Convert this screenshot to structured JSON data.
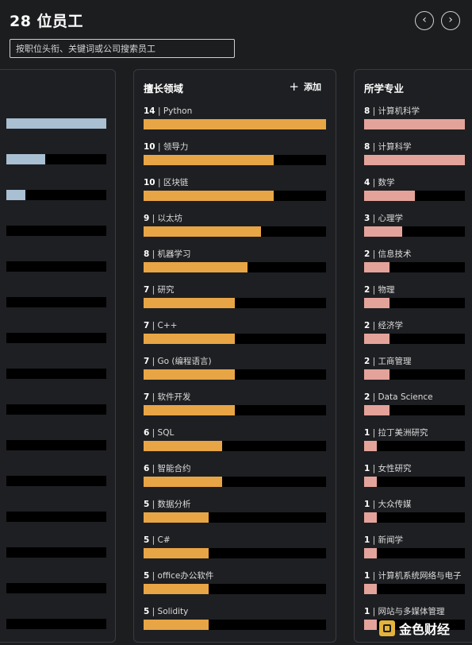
{
  "header": {
    "title": "28 位员工",
    "prev_glyph": "‹",
    "next_glyph": "›"
  },
  "search": {
    "placeholder": "按职位头衔、关键词或公司搜索员工"
  },
  "left_panel": {
    "bars": [
      {
        "fraction": 1.0
      },
      {
        "fraction": 0.39
      },
      {
        "fraction": 0.19
      },
      {
        "fraction": 0.0
      },
      {
        "fraction": 0.0
      },
      {
        "fraction": 0.0
      },
      {
        "fraction": 0.0
      },
      {
        "fraction": 0.0
      },
      {
        "fraction": 0.0
      },
      {
        "fraction": 0.0
      },
      {
        "fraction": 0.0
      },
      {
        "fraction": 0.0
      },
      {
        "fraction": 0.0
      },
      {
        "fraction": 0.0
      },
      {
        "fraction": 0.0
      }
    ],
    "bar_color": "#a9bfd2"
  },
  "skills_panel": {
    "title": "擅长领域",
    "add_label": "添加",
    "bar_color": "#e8a545",
    "max_value": 14,
    "items": [
      {
        "count": "14",
        "label": "| Python",
        "value": 14
      },
      {
        "count": "10",
        "label": "| 领导力",
        "value": 10
      },
      {
        "count": "10",
        "label": "| 区块链",
        "value": 10
      },
      {
        "count": "9",
        "label": "| 以太坊",
        "value": 9
      },
      {
        "count": "8",
        "label": "| 机器学习",
        "value": 8
      },
      {
        "count": "7",
        "label": "| 研究",
        "value": 7
      },
      {
        "count": "7",
        "label": "| C++",
        "value": 7
      },
      {
        "count": "7",
        "label": "| Go (编程语言)",
        "value": 7
      },
      {
        "count": "7",
        "label": "| 软件开发",
        "value": 7
      },
      {
        "count": "6",
        "label": "| SQL",
        "value": 6
      },
      {
        "count": "6",
        "label": "| 智能合约",
        "value": 6
      },
      {
        "count": "5",
        "label": "| 数据分析",
        "value": 5
      },
      {
        "count": "5",
        "label": "| C#",
        "value": 5
      },
      {
        "count": "5",
        "label": "| office办公软件",
        "value": 5
      },
      {
        "count": "5",
        "label": "| Solidity",
        "value": 5
      }
    ]
  },
  "majors_panel": {
    "title": "所学专业",
    "bar_color": "#e4a39a",
    "max_value": 8,
    "items": [
      {
        "count": "8",
        "label": "| 计算机科学",
        "value": 8
      },
      {
        "count": "8",
        "label": "| 计算科学",
        "value": 8
      },
      {
        "count": "4",
        "label": "| 数学",
        "value": 4
      },
      {
        "count": "3",
        "label": "| 心理学",
        "value": 3
      },
      {
        "count": "2",
        "label": "| 信息技术",
        "value": 2
      },
      {
        "count": "2",
        "label": "| 物理",
        "value": 2
      },
      {
        "count": "2",
        "label": "| 经济学",
        "value": 2
      },
      {
        "count": "2",
        "label": "| 工商管理",
        "value": 2
      },
      {
        "count": "2",
        "label": "| Data Science",
        "value": 2
      },
      {
        "count": "1",
        "label": "| 拉丁美洲研究",
        "value": 1
      },
      {
        "count": "1",
        "label": "| 女性研究",
        "value": 1
      },
      {
        "count": "1",
        "label": "| 大众传媒",
        "value": 1
      },
      {
        "count": "1",
        "label": "| 新闻学",
        "value": 1
      },
      {
        "count": "1",
        "label": "| 计算机系统网络与电子",
        "value": 1
      },
      {
        "count": "1",
        "label": "| 网站与多媒体管理",
        "value": 1
      }
    ]
  },
  "watermark": {
    "text": "金色财经"
  }
}
